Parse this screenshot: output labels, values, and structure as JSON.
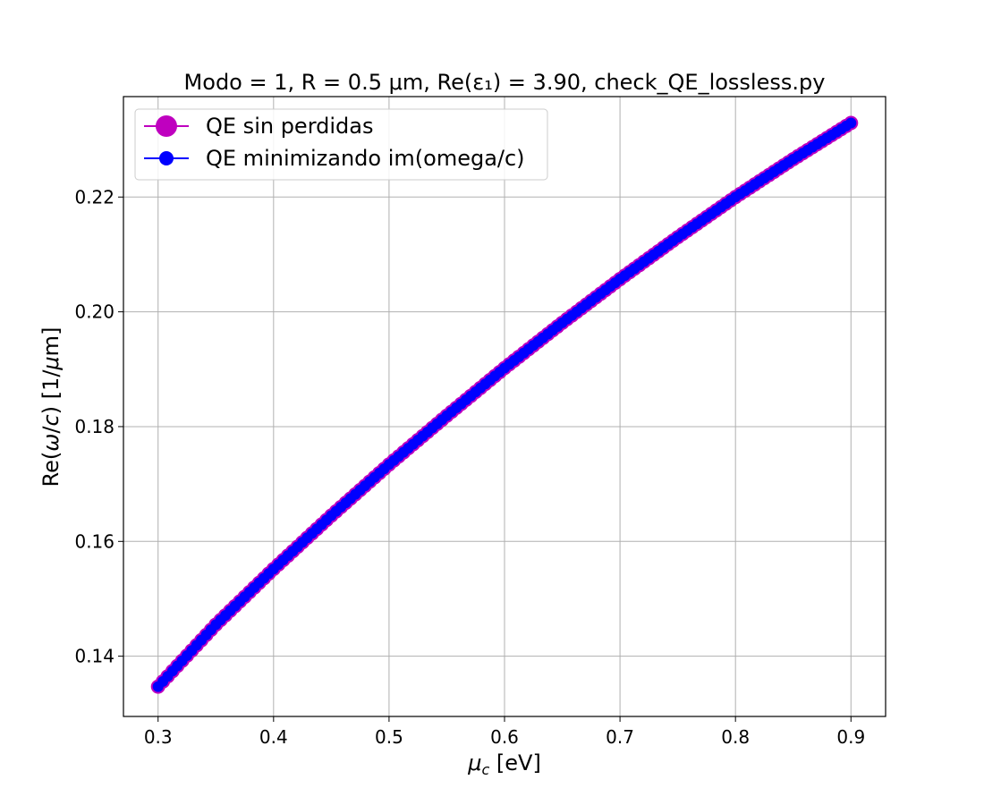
{
  "chart_data": {
    "type": "line",
    "title": "Modo = 1, R = 0.5 μm, Re(ε₁) = 3.90, check_QE_lossless.py",
    "xlabel": "μ_c [eV]",
    "ylabel": "Re(ω/c) [1/μm]",
    "xlim": [
      0.27,
      0.93
    ],
    "ylim": [
      0.1295,
      0.2375
    ],
    "xticks": [
      0.3,
      0.4,
      0.5,
      0.6,
      0.7,
      0.8,
      0.9
    ],
    "xtick_labels": [
      "0.3",
      "0.4",
      "0.5",
      "0.6",
      "0.7",
      "0.8",
      "0.9"
    ],
    "yticks": [
      0.14,
      0.16,
      0.18,
      0.2,
      0.22
    ],
    "ytick_labels": [
      "0.14",
      "0.16",
      "0.18",
      "0.20",
      "0.22"
    ],
    "grid": true,
    "legend_position": "upper-left",
    "x": [
      0.3,
      0.35,
      0.4,
      0.45,
      0.5,
      0.55,
      0.6,
      0.65,
      0.7,
      0.75,
      0.8,
      0.85,
      0.9
    ],
    "series": [
      {
        "name": "QE sin perdidas",
        "color": "#bf00bf",
        "marker": "circle-large",
        "values": [
          0.1347,
          0.1455,
          0.1552,
          0.1645,
          0.1734,
          0.1819,
          0.1902,
          0.1981,
          0.2057,
          0.213,
          0.22,
          0.2266,
          0.2329
        ]
      },
      {
        "name": "QE minimizando im(omega/c)",
        "color": "#0000ff",
        "marker": "circle",
        "values": [
          0.1347,
          0.1455,
          0.1552,
          0.1645,
          0.1734,
          0.1819,
          0.1902,
          0.1981,
          0.2057,
          0.213,
          0.22,
          0.2266,
          0.2329
        ]
      }
    ]
  }
}
